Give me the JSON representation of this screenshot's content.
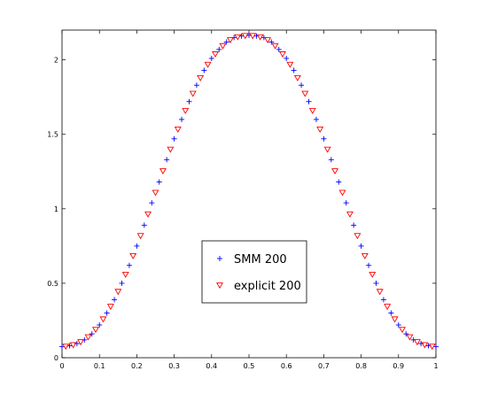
{
  "chart_data": {
    "type": "scatter",
    "xlim": [
      0,
      1
    ],
    "ylim": [
      0,
      2.2
    ],
    "xticks": [
      "0",
      "0.1",
      "0.2",
      "0.3",
      "0.4",
      "0.5",
      "0.6",
      "0.7",
      "0.8",
      "0.9",
      "1"
    ],
    "yticks": [
      "0",
      "0.5",
      "1",
      "1.5",
      "2"
    ],
    "grid": false,
    "legend_position": "center-bottom",
    "series": [
      {
        "name": "SMM 200",
        "marker": "plus",
        "color": "#0000ff",
        "points": [
          [
            0.0,
            0.075
          ],
          [
            0.02,
            0.08
          ],
          [
            0.04,
            0.095
          ],
          [
            0.06,
            0.12
          ],
          [
            0.08,
            0.16
          ],
          [
            0.1,
            0.22
          ],
          [
            0.12,
            0.3
          ],
          [
            0.14,
            0.39
          ],
          [
            0.16,
            0.5
          ],
          [
            0.18,
            0.62
          ],
          [
            0.2,
            0.75
          ],
          [
            0.22,
            0.89
          ],
          [
            0.24,
            1.04
          ],
          [
            0.26,
            1.18
          ],
          [
            0.28,
            1.33
          ],
          [
            0.3,
            1.47
          ],
          [
            0.32,
            1.6
          ],
          [
            0.34,
            1.72
          ],
          [
            0.36,
            1.83
          ],
          [
            0.38,
            1.93
          ],
          [
            0.4,
            2.01
          ],
          [
            0.42,
            2.07
          ],
          [
            0.44,
            2.12
          ],
          [
            0.46,
            2.15
          ],
          [
            0.48,
            2.16
          ],
          [
            0.5,
            2.165
          ],
          [
            0.52,
            2.16
          ],
          [
            0.54,
            2.15
          ],
          [
            0.56,
            2.12
          ],
          [
            0.58,
            2.07
          ],
          [
            0.6,
            2.01
          ],
          [
            0.62,
            1.93
          ],
          [
            0.64,
            1.83
          ],
          [
            0.66,
            1.72
          ],
          [
            0.68,
            1.6
          ],
          [
            0.7,
            1.47
          ],
          [
            0.72,
            1.33
          ],
          [
            0.74,
            1.18
          ],
          [
            0.76,
            1.04
          ],
          [
            0.78,
            0.89
          ],
          [
            0.8,
            0.75
          ],
          [
            0.82,
            0.62
          ],
          [
            0.84,
            0.5
          ],
          [
            0.86,
            0.39
          ],
          [
            0.88,
            0.3
          ],
          [
            0.9,
            0.22
          ],
          [
            0.92,
            0.16
          ],
          [
            0.94,
            0.12
          ],
          [
            0.96,
            0.095
          ],
          [
            0.98,
            0.08
          ],
          [
            1.0,
            0.075
          ]
        ]
      },
      {
        "name": "explicit 200",
        "marker": "triangle-down",
        "color": "#ff0000",
        "points": [
          [
            0.01,
            0.077
          ],
          [
            0.03,
            0.087
          ],
          [
            0.05,
            0.107
          ],
          [
            0.07,
            0.14
          ],
          [
            0.09,
            0.19
          ],
          [
            0.11,
            0.26
          ],
          [
            0.13,
            0.345
          ],
          [
            0.15,
            0.445
          ],
          [
            0.17,
            0.56
          ],
          [
            0.19,
            0.685
          ],
          [
            0.21,
            0.82
          ],
          [
            0.23,
            0.965
          ],
          [
            0.25,
            1.11
          ],
          [
            0.27,
            1.255
          ],
          [
            0.29,
            1.4
          ],
          [
            0.31,
            1.535
          ],
          [
            0.33,
            1.66
          ],
          [
            0.35,
            1.775
          ],
          [
            0.37,
            1.88
          ],
          [
            0.39,
            1.97
          ],
          [
            0.41,
            2.04
          ],
          [
            0.43,
            2.095
          ],
          [
            0.45,
            2.135
          ],
          [
            0.47,
            2.155
          ],
          [
            0.49,
            2.163
          ],
          [
            0.51,
            2.163
          ],
          [
            0.53,
            2.155
          ],
          [
            0.55,
            2.135
          ],
          [
            0.57,
            2.095
          ],
          [
            0.59,
            2.04
          ],
          [
            0.61,
            1.97
          ],
          [
            0.63,
            1.88
          ],
          [
            0.65,
            1.775
          ],
          [
            0.67,
            1.66
          ],
          [
            0.69,
            1.535
          ],
          [
            0.71,
            1.4
          ],
          [
            0.73,
            1.255
          ],
          [
            0.75,
            1.11
          ],
          [
            0.77,
            0.965
          ],
          [
            0.79,
            0.82
          ],
          [
            0.81,
            0.685
          ],
          [
            0.83,
            0.56
          ],
          [
            0.85,
            0.445
          ],
          [
            0.87,
            0.345
          ],
          [
            0.89,
            0.26
          ],
          [
            0.91,
            0.19
          ],
          [
            0.93,
            0.14
          ],
          [
            0.95,
            0.107
          ],
          [
            0.97,
            0.087
          ],
          [
            0.99,
            0.077
          ]
        ]
      }
    ]
  }
}
